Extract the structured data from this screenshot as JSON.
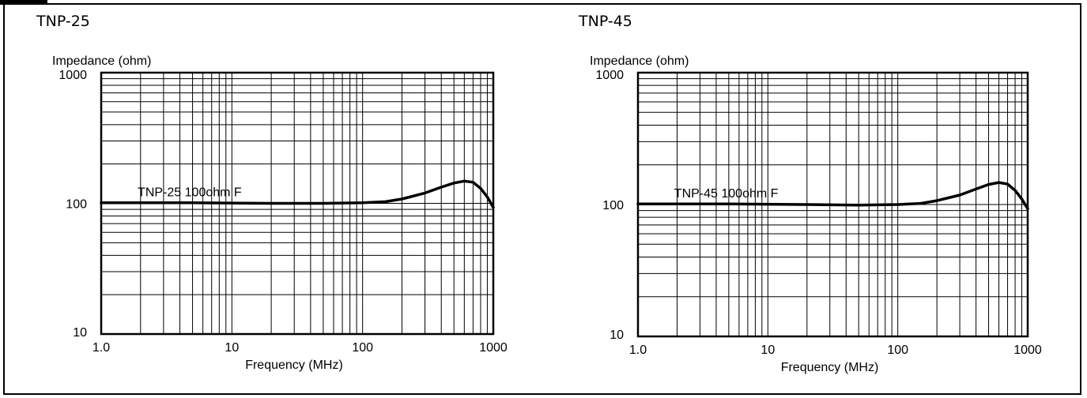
{
  "colors": {
    "frame": "#000000",
    "curve": "#000000",
    "grid": "#000000",
    "background": "#ffffff"
  },
  "panels": [
    {
      "title": "TNP-25"
    },
    {
      "title": "TNP-45"
    }
  ],
  "chart_data": [
    {
      "type": "line",
      "title": "TNP-25",
      "xlabel": "Frequency (MHz)",
      "ylabel": "Impedance (ohm)",
      "xscale": "log",
      "yscale": "log",
      "xlim": [
        1,
        1000
      ],
      "ylim": [
        10,
        1000
      ],
      "grid": true,
      "xticks": [
        {
          "value": 1,
          "label": "1.0"
        },
        {
          "value": 10,
          "label": "10"
        },
        {
          "value": 100,
          "label": "100"
        },
        {
          "value": 1000,
          "label": "1000"
        }
      ],
      "yticks": [
        {
          "value": 10,
          "label": "10"
        },
        {
          "value": 100,
          "label": "100"
        },
        {
          "value": 1000,
          "label": "1000"
        }
      ],
      "annotations": [
        {
          "text": "TNP-25 100ohm F",
          "x": 1.9,
          "y": 123
        }
      ],
      "series": [
        {
          "x": [
            1,
            5,
            20,
            50,
            100,
            150,
            200,
            300,
            400,
            500,
            600,
            700,
            800,
            900,
            1000
          ],
          "y": [
            101,
            101,
            100,
            100,
            101,
            103,
            108,
            120,
            133,
            143,
            148,
            145,
            130,
            112,
            93
          ]
        }
      ]
    },
    {
      "type": "line",
      "title": "TNP-45",
      "xlabel": "Frequency (MHz)",
      "ylabel": "Impedance (ohm)",
      "xscale": "log",
      "yscale": "log",
      "xlim": [
        1,
        1000
      ],
      "ylim": [
        10,
        1000
      ],
      "grid": true,
      "xticks": [
        {
          "value": 1,
          "label": "1.0"
        },
        {
          "value": 10,
          "label": "10"
        },
        {
          "value": 100,
          "label": "100"
        },
        {
          "value": 1000,
          "label": "1000"
        }
      ],
      "yticks": [
        {
          "value": 10,
          "label": "10"
        },
        {
          "value": 100,
          "label": "100"
        },
        {
          "value": 1000,
          "label": "1000"
        }
      ],
      "annotations": [
        {
          "text": "TNP-45 100ohm F",
          "x": 1.9,
          "y": 123
        }
      ],
      "series": [
        {
          "x": [
            1,
            5,
            20,
            50,
            100,
            150,
            200,
            300,
            400,
            500,
            600,
            700,
            800,
            900,
            1000
          ],
          "y": [
            101,
            101,
            100,
            99,
            100,
            102,
            107,
            118,
            131,
            142,
            147,
            143,
            128,
            110,
            93
          ]
        }
      ]
    }
  ]
}
